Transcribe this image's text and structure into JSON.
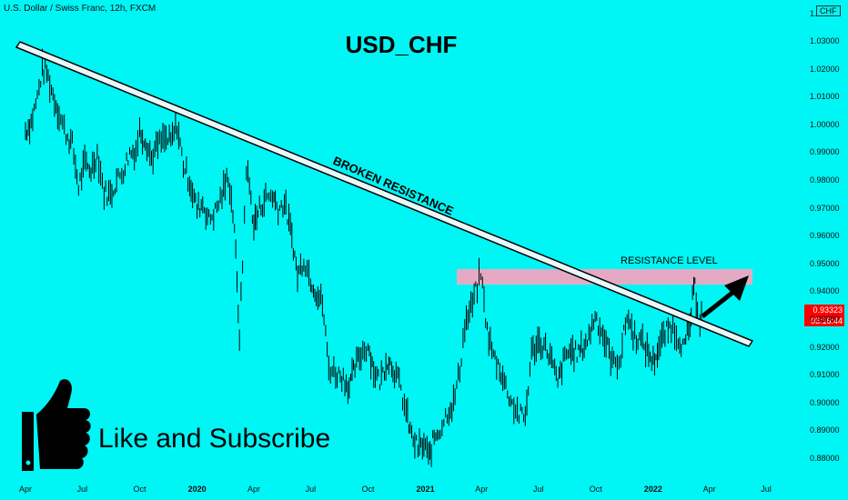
{
  "header": {
    "symbol_description": "U.S. Dollar / Swiss Franc, 12h, FXCM",
    "currency_button": "CHF"
  },
  "annotations": {
    "title": "USD_CHF",
    "broken_resistance": "BROKEN RESISTANCE",
    "resistance_level": "RESISTANCE LEVEL",
    "like_subscribe": "Like and Subscribe"
  },
  "price_tag": {
    "price": "0.93323",
    "countdown": "03:16:44"
  },
  "colors": {
    "background": "#00f5f5",
    "candles": "#000000",
    "trendline_fill": "#e8f7f7",
    "trendline_edge": "#000000",
    "resistance_zone": "#e4aac4",
    "price_tag": "#ff0000"
  },
  "chart_data": {
    "type": "line",
    "title": "",
    "xlabel": "",
    "ylabel": "",
    "ylim": [
      0.875,
      1.04
    ],
    "y_ticks": [
      "1.03000",
      "1.02000",
      "1.01000",
      "1.00000",
      "0.99000",
      "0.98000",
      "0.97000",
      "0.96000",
      "0.95000",
      "0.94000",
      "0.93000",
      "0.92000",
      "0.91000",
      "0.90000",
      "0.89000",
      "0.88000"
    ],
    "y_top_label": "1.",
    "x_ticks": [
      {
        "label": "Apr",
        "major": false
      },
      {
        "label": "Jul",
        "major": false
      },
      {
        "label": "Oct",
        "major": false
      },
      {
        "label": "2020",
        "major": true
      },
      {
        "label": "Apr",
        "major": false
      },
      {
        "label": "Jul",
        "major": false
      },
      {
        "label": "Oct",
        "major": false
      },
      {
        "label": "2021",
        "major": true
      },
      {
        "label": "Apr",
        "major": false
      },
      {
        "label": "Jul",
        "major": false
      },
      {
        "label": "Oct",
        "major": false
      },
      {
        "label": "2022",
        "major": true
      },
      {
        "label": "Apr",
        "major": false
      },
      {
        "label": "Jul",
        "major": false
      }
    ],
    "series": [
      {
        "values": [
          [
            "2019-04-01",
            0.998
          ],
          [
            "2019-04-10",
            1.001
          ],
          [
            "2019-04-20",
            1.01
          ],
          [
            "2019-04-28",
            1.02
          ],
          [
            "2019-05-05",
            1.019
          ],
          [
            "2019-05-15",
            1.011
          ],
          [
            "2019-05-25",
            1.004
          ],
          [
            "2019-06-05",
            0.997
          ],
          [
            "2019-06-15",
            0.993
          ],
          [
            "2019-06-25",
            0.978
          ],
          [
            "2019-07-05",
            0.986
          ],
          [
            "2019-07-15",
            0.984
          ],
          [
            "2019-07-25",
            0.99
          ],
          [
            "2019-08-05",
            0.976
          ],
          [
            "2019-08-15",
            0.975
          ],
          [
            "2019-08-25",
            0.98
          ],
          [
            "2019-09-05",
            0.984
          ],
          [
            "2019-09-15",
            0.99
          ],
          [
            "2019-09-25",
            0.991
          ],
          [
            "2019-10-01",
            0.998
          ],
          [
            "2019-10-10",
            0.995
          ],
          [
            "2019-10-20",
            0.988
          ],
          [
            "2019-10-30",
            0.993
          ],
          [
            "2019-11-10",
            0.995
          ],
          [
            "2019-11-20",
            0.994
          ],
          [
            "2019-11-30",
            1.0
          ],
          [
            "2019-12-10",
            0.986
          ],
          [
            "2019-12-20",
            0.98
          ],
          [
            "2020-01-01",
            0.97
          ],
          [
            "2020-01-10",
            0.972
          ],
          [
            "2020-01-20",
            0.966
          ],
          [
            "2020-01-30",
            0.969
          ],
          [
            "2020-02-10",
            0.975
          ],
          [
            "2020-02-20",
            0.982
          ],
          [
            "2020-03-01",
            0.964
          ],
          [
            "2020-03-05",
            0.942
          ],
          [
            "2020-03-09",
            0.925
          ],
          [
            "2020-03-14",
            0.95
          ],
          [
            "2020-03-20",
            0.985
          ],
          [
            "2020-03-25",
            0.978
          ],
          [
            "2020-04-01",
            0.964
          ],
          [
            "2020-04-10",
            0.97
          ],
          [
            "2020-04-20",
            0.974
          ],
          [
            "2020-05-01",
            0.975
          ],
          [
            "2020-05-10",
            0.97
          ],
          [
            "2020-05-20",
            0.972
          ],
          [
            "2020-06-01",
            0.96
          ],
          [
            "2020-06-10",
            0.946
          ],
          [
            "2020-06-20",
            0.952
          ],
          [
            "2020-07-01",
            0.945
          ],
          [
            "2020-07-10",
            0.94
          ],
          [
            "2020-07-20",
            0.936
          ],
          [
            "2020-07-30",
            0.913
          ],
          [
            "2020-08-10",
            0.911
          ],
          [
            "2020-08-20",
            0.91
          ],
          [
            "2020-09-01",
            0.906
          ],
          [
            "2020-09-10",
            0.913
          ],
          [
            "2020-09-20",
            0.918
          ],
          [
            "2020-10-01",
            0.921
          ],
          [
            "2020-10-10",
            0.912
          ],
          [
            "2020-10-20",
            0.908
          ],
          [
            "2020-11-01",
            0.916
          ],
          [
            "2020-11-10",
            0.913
          ],
          [
            "2020-11-20",
            0.907
          ],
          [
            "2020-12-01",
            0.897
          ],
          [
            "2020-12-10",
            0.888
          ],
          [
            "2020-12-20",
            0.884
          ],
          [
            "2021-01-01",
            0.885
          ],
          [
            "2021-01-06",
            0.88
          ],
          [
            "2021-01-15",
            0.888
          ],
          [
            "2021-01-25",
            0.891
          ],
          [
            "2021-02-05",
            0.897
          ],
          [
            "2021-02-15",
            0.9
          ],
          [
            "2021-02-25",
            0.912
          ],
          [
            "2021-03-05",
            0.928
          ],
          [
            "2021-03-15",
            0.934
          ],
          [
            "2021-03-25",
            0.942
          ],
          [
            "2021-03-31",
            0.947
          ],
          [
            "2021-04-10",
            0.926
          ],
          [
            "2021-04-20",
            0.917
          ],
          [
            "2021-04-30",
            0.913
          ],
          [
            "2021-05-10",
            0.906
          ],
          [
            "2021-05-20",
            0.9
          ],
          [
            "2021-05-31",
            0.896
          ],
          [
            "2021-06-10",
            0.895
          ],
          [
            "2021-06-20",
            0.918
          ],
          [
            "2021-06-30",
            0.922
          ],
          [
            "2021-07-10",
            0.921
          ],
          [
            "2021-07-20",
            0.917
          ],
          [
            "2021-08-01",
            0.907
          ],
          [
            "2021-08-10",
            0.915
          ],
          [
            "2021-08-20",
            0.919
          ],
          [
            "2021-09-01",
            0.918
          ],
          [
            "2021-09-10",
            0.92
          ],
          [
            "2021-09-20",
            0.924
          ],
          [
            "2021-09-30",
            0.932
          ],
          [
            "2021-10-10",
            0.926
          ],
          [
            "2021-10-20",
            0.92
          ],
          [
            "2021-10-30",
            0.914
          ],
          [
            "2021-11-10",
            0.917
          ],
          [
            "2021-11-20",
            0.932
          ],
          [
            "2021-11-30",
            0.925
          ],
          [
            "2021-12-10",
            0.923
          ],
          [
            "2021-12-20",
            0.92
          ],
          [
            "2022-01-01",
            0.915
          ],
          [
            "2022-01-10",
            0.92
          ],
          [
            "2022-01-20",
            0.925
          ],
          [
            "2022-01-30",
            0.928
          ],
          [
            "2022-02-10",
            0.924
          ],
          [
            "2022-02-20",
            0.92
          ],
          [
            "2022-03-01",
            0.928
          ],
          [
            "2022-03-05",
            0.937
          ],
          [
            "2022-03-09",
            0.942
          ],
          [
            "2022-03-13",
            0.934
          ],
          [
            "2022-03-17",
            0.93
          ],
          [
            "2022-03-22",
            0.933
          ]
        ]
      }
    ]
  }
}
